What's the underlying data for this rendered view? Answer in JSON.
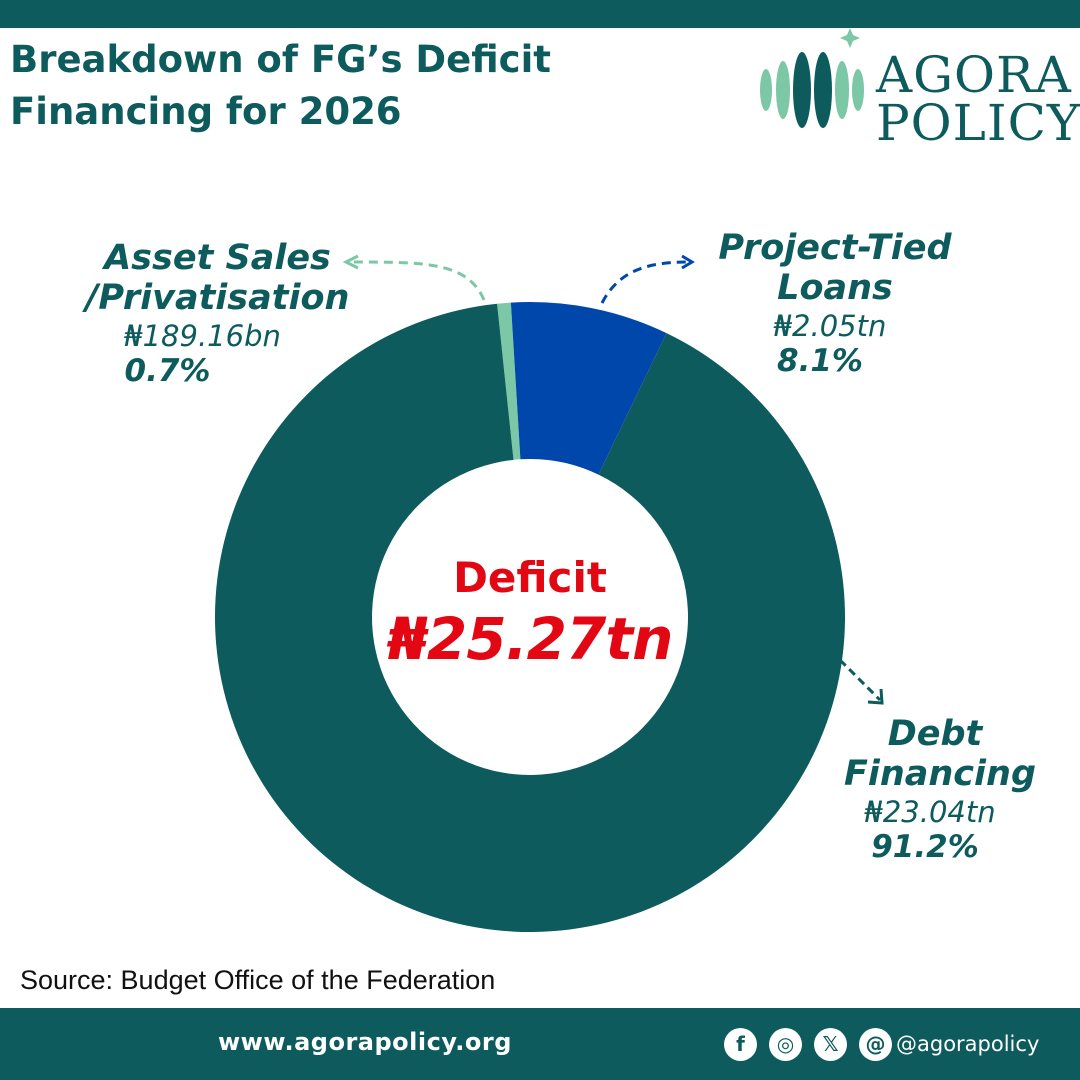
{
  "header": {
    "title_line1": "Breakdown of FG’s Deficit",
    "title_line2": "Financing for 2026"
  },
  "logo": {
    "line1": "AGORA",
    "line2": "POLICY"
  },
  "colors": {
    "brand_teal": "#0d5b5c",
    "asset_sales": "#7cc7a6",
    "project_loans": "#0047ab",
    "center_text": "#e30613"
  },
  "center": {
    "title": "Deficit",
    "value": "₦25.27tn"
  },
  "chart_data": {
    "type": "pie",
    "donut": true,
    "total_label": "₦25.27tn",
    "slices": [
      {
        "name": "Asset Sales /Privatisation",
        "name_lines": [
          "Asset Sales",
          "/Privatisation"
        ],
        "amount": "₦189.16bn",
        "percent": 0.7,
        "percent_label": "0.7%",
        "color": "#7cc7a6"
      },
      {
        "name": "Project-Tied Loans",
        "name_lines": [
          "Project-Tied",
          "Loans"
        ],
        "amount": "₦2.05tn",
        "percent": 8.1,
        "percent_label": "8.1%",
        "color": "#0047ab"
      },
      {
        "name": "Debt Financing",
        "name_lines": [
          "Debt",
          "Financing"
        ],
        "amount": "₦23.04tn",
        "percent": 91.2,
        "percent_label": "91.2%",
        "color": "#0d5b5c"
      }
    ]
  },
  "source": "Source: Budget Office of the Federation",
  "footer": {
    "website": "www.agorapolicy.org",
    "handle": "@agorapolicy",
    "icons": [
      {
        "name": "facebook-icon",
        "glyph": "f"
      },
      {
        "name": "instagram-icon",
        "glyph": "◎"
      },
      {
        "name": "x-icon",
        "glyph": "𝕏"
      },
      {
        "name": "threads-icon",
        "glyph": "@"
      }
    ]
  }
}
